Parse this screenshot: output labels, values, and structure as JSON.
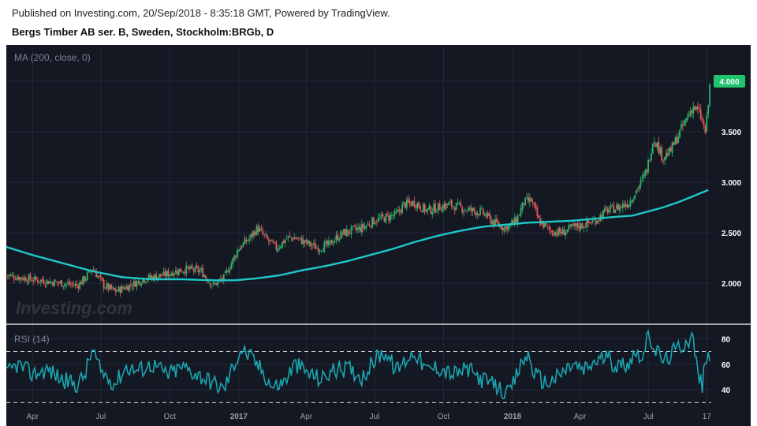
{
  "header": {
    "published": "Published on Investing.com, 20/Sep/2018 - 8:35:18 GMT, Powered by TradingView.",
    "symbol": "Bergs Timber AB ser. B, Sweden, Stockholm:BRGb, D"
  },
  "watermark": "Investing.com",
  "colors": {
    "background": "#141823",
    "up_candle": "#2db36b",
    "down_candle": "#e55b5b",
    "ma_line": "#1ec8c8",
    "rsi_line": "#1aa5b0",
    "price_badge": "#1ec46e",
    "grid": "#232838"
  },
  "chart_data": [
    {
      "type": "candlestick",
      "title": "MA (200, close, 0)",
      "y_ticks": [
        "4.000",
        "3.500",
        "3.000",
        "2.500",
        "2.000"
      ],
      "y_tick_values": [
        4.0,
        3.5,
        3.0,
        2.5,
        2.0
      ],
      "ylim": [
        1.72,
        4.18
      ],
      "last_price_label": "4.000",
      "grid": true,
      "x_ticks": [
        {
          "label": "Apr",
          "day": 0
        },
        {
          "label": "Jul",
          "day": 91
        },
        {
          "label": "Oct",
          "day": 183
        },
        {
          "label": "2017",
          "day": 275
        },
        {
          "label": "Apr",
          "day": 365
        },
        {
          "label": "Jul",
          "day": 456
        },
        {
          "label": "Oct",
          "day": 548
        },
        {
          "label": "2018",
          "day": 640
        },
        {
          "label": "Apr",
          "day": 730
        },
        {
          "label": "Jul",
          "day": 821
        },
        {
          "label": "17",
          "day": 899
        }
      ],
      "xlim": [
        -35,
        905
      ],
      "close_anchors": [
        [
          -35,
          2.08
        ],
        [
          0,
          2.04
        ],
        [
          40,
          2.0
        ],
        [
          60,
          1.98
        ],
        [
          70,
          2.05
        ],
        [
          80,
          2.15
        ],
        [
          95,
          1.98
        ],
        [
          110,
          1.92
        ],
        [
          130,
          1.98
        ],
        [
          150,
          2.05
        ],
        [
          175,
          2.08
        ],
        [
          190,
          2.12
        ],
        [
          205,
          2.14
        ],
        [
          225,
          2.12
        ],
        [
          240,
          1.98
        ],
        [
          255,
          2.05
        ],
        [
          265,
          2.2
        ],
        [
          275,
          2.35
        ],
        [
          290,
          2.45
        ],
        [
          300,
          2.55
        ],
        [
          310,
          2.45
        ],
        [
          325,
          2.35
        ],
        [
          340,
          2.45
        ],
        [
          350,
          2.45
        ],
        [
          365,
          2.4
        ],
        [
          380,
          2.35
        ],
        [
          395,
          2.38
        ],
        [
          405,
          2.45
        ],
        [
          415,
          2.5
        ],
        [
          425,
          2.52
        ],
        [
          440,
          2.55
        ],
        [
          455,
          2.62
        ],
        [
          470,
          2.65
        ],
        [
          485,
          2.68
        ],
        [
          495,
          2.78
        ],
        [
          510,
          2.8
        ],
        [
          525,
          2.72
        ],
        [
          540,
          2.75
        ],
        [
          555,
          2.78
        ],
        [
          570,
          2.75
        ],
        [
          585,
          2.72
        ],
        [
          600,
          2.7
        ],
        [
          615,
          2.6
        ],
        [
          630,
          2.55
        ],
        [
          645,
          2.62
        ],
        [
          655,
          2.8
        ],
        [
          665,
          2.82
        ],
        [
          675,
          2.62
        ],
        [
          690,
          2.52
        ],
        [
          705,
          2.5
        ],
        [
          720,
          2.55
        ],
        [
          735,
          2.58
        ],
        [
          750,
          2.62
        ],
        [
          765,
          2.72
        ],
        [
          780,
          2.75
        ],
        [
          795,
          2.8
        ],
        [
          805,
          2.92
        ],
        [
          815,
          3.05
        ],
        [
          820,
          3.15
        ],
        [
          828,
          3.45
        ],
        [
          840,
          3.25
        ],
        [
          850,
          3.3
        ],
        [
          860,
          3.45
        ],
        [
          870,
          3.6
        ],
        [
          880,
          3.75
        ],
        [
          888,
          3.7
        ],
        [
          893,
          3.6
        ],
        [
          897,
          3.5
        ],
        [
          900,
          3.68
        ],
        [
          903,
          3.95
        ]
      ],
      "ma_anchors": [
        [
          -35,
          2.36
        ],
        [
          0,
          2.28
        ],
        [
          40,
          2.2
        ],
        [
          80,
          2.12
        ],
        [
          120,
          2.06
        ],
        [
          160,
          2.04
        ],
        [
          200,
          2.04
        ],
        [
          240,
          2.03
        ],
        [
          270,
          2.03
        ],
        [
          300,
          2.05
        ],
        [
          330,
          2.08
        ],
        [
          360,
          2.13
        ],
        [
          390,
          2.17
        ],
        [
          420,
          2.22
        ],
        [
          450,
          2.28
        ],
        [
          480,
          2.34
        ],
        [
          510,
          2.41
        ],
        [
          540,
          2.47
        ],
        [
          570,
          2.52
        ],
        [
          600,
          2.56
        ],
        [
          630,
          2.58
        ],
        [
          660,
          2.6
        ],
        [
          690,
          2.61
        ],
        [
          720,
          2.62
        ],
        [
          750,
          2.64
        ],
        [
          780,
          2.66
        ],
        [
          800,
          2.67
        ],
        [
          820,
          2.71
        ],
        [
          840,
          2.75
        ],
        [
          860,
          2.8
        ],
        [
          880,
          2.86
        ],
        [
          903,
          2.93
        ]
      ]
    },
    {
      "type": "line",
      "title": "RSI (14)",
      "y_ticks": [
        "80",
        "60",
        "40"
      ],
      "y_tick_values": [
        80,
        60,
        40
      ],
      "ylim": [
        29,
        87
      ],
      "bands": [
        70,
        30
      ],
      "rsi_anchors": [
        [
          -35,
          52
        ],
        [
          -20,
          60
        ],
        [
          0,
          52
        ],
        [
          20,
          56
        ],
        [
          40,
          48
        ],
        [
          60,
          44
        ],
        [
          70,
          52
        ],
        [
          80,
          72
        ],
        [
          90,
          55
        ],
        [
          110,
          45
        ],
        [
          125,
          58
        ],
        [
          140,
          55
        ],
        [
          160,
          60
        ],
        [
          180,
          52
        ],
        [
          200,
          58
        ],
        [
          220,
          52
        ],
        [
          240,
          46
        ],
        [
          255,
          40
        ],
        [
          265,
          55
        ],
        [
          278,
          72
        ],
        [
          290,
          66
        ],
        [
          305,
          56
        ],
        [
          320,
          42
        ],
        [
          335,
          46
        ],
        [
          350,
          60
        ],
        [
          365,
          54
        ],
        [
          385,
          48
        ],
        [
          400,
          55
        ],
        [
          420,
          57
        ],
        [
          440,
          50
        ],
        [
          460,
          66
        ],
        [
          470,
          70
        ],
        [
          485,
          55
        ],
        [
          500,
          65
        ],
        [
          510,
          70
        ],
        [
          525,
          55
        ],
        [
          540,
          58
        ],
        [
          560,
          52
        ],
        [
          580,
          56
        ],
        [
          600,
          48
        ],
        [
          620,
          42
        ],
        [
          635,
          36
        ],
        [
          650,
          58
        ],
        [
          660,
          68
        ],
        [
          670,
          52
        ],
        [
          685,
          45
        ],
        [
          700,
          50
        ],
        [
          720,
          60
        ],
        [
          735,
          55
        ],
        [
          750,
          62
        ],
        [
          765,
          66
        ],
        [
          780,
          58
        ],
        [
          795,
          62
        ],
        [
          805,
          70
        ],
        [
          815,
          66
        ],
        [
          821,
          84
        ],
        [
          830,
          72
        ],
        [
          842,
          62
        ],
        [
          855,
          70
        ],
        [
          870,
          77
        ],
        [
          880,
          82
        ],
        [
          888,
          50
        ],
        [
          893,
          44
        ],
        [
          897,
          60
        ],
        [
          903,
          68
        ]
      ]
    }
  ]
}
